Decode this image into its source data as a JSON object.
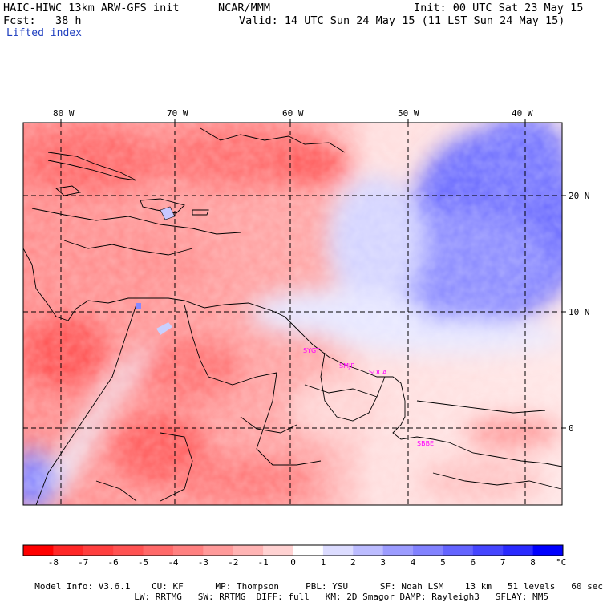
{
  "header": {
    "model_line": "HAIC-HIWC 13km ARW-GFS init",
    "org": "NCAR/MMM",
    "init": "Init: 00 UTC Sat 23 May 15",
    "fcst": "Fcst:   38 h",
    "valid": "Valid: 14 UTC Sun 24 May 15 (11 LST Sun 24 May 15)",
    "field": "Lifted index"
  },
  "map": {
    "lon_labels": [
      "80 W",
      "70 W",
      "60 W",
      "50 W",
      "40 W"
    ],
    "lat_labels": [
      "20 N",
      "10 N",
      "0"
    ],
    "stations": [
      "SYGT",
      "SMJP",
      "SOCA",
      "SBBE"
    ]
  },
  "colorbar": {
    "labels": [
      "-8",
      "-7",
      "-6",
      "-5",
      "-4",
      "-3",
      "-2",
      "-1",
      "0",
      "1",
      "2",
      "3",
      "4",
      "5",
      "6",
      "7",
      "8"
    ],
    "unit": "°C",
    "colors": [
      "#ff0000",
      "#ff2727",
      "#ff3f3f",
      "#ff5252",
      "#ff6969",
      "#ff8080",
      "#ff9a9a",
      "#ffb4b4",
      "#ffd2d2",
      "#ffffff",
      "#dcdcff",
      "#bcbcff",
      "#9c9cff",
      "#8282ff",
      "#6464ff",
      "#4646ff",
      "#2a2aff",
      "#0000ff"
    ]
  },
  "footer": {
    "line1": [
      {
        "label": "Model Info:",
        "value": "V3.6.1"
      },
      {
        "label": "CU:",
        "value": "KF"
      },
      {
        "label": "MP:",
        "value": "Thompson"
      },
      {
        "label": "PBL:",
        "value": "YSU"
      },
      {
        "label": "SF:",
        "value": "Noah LSM"
      },
      {
        "label": "",
        "value": "13 km"
      },
      {
        "label": "",
        "value": "51 levels"
      },
      {
        "label": "",
        "value": "60 sec"
      }
    ],
    "line2": [
      {
        "label": "LW:",
        "value": "RRTMG"
      },
      {
        "label": "SW:",
        "value": "RRTMG"
      },
      {
        "label": "DIFF:",
        "value": "full"
      },
      {
        "label": "KM:",
        "value": "2D Smagor"
      },
      {
        "label": "DAMP:",
        "value": "Rayleigh3"
      },
      {
        "label": "SFLAY:",
        "value": "MM5"
      }
    ]
  }
}
